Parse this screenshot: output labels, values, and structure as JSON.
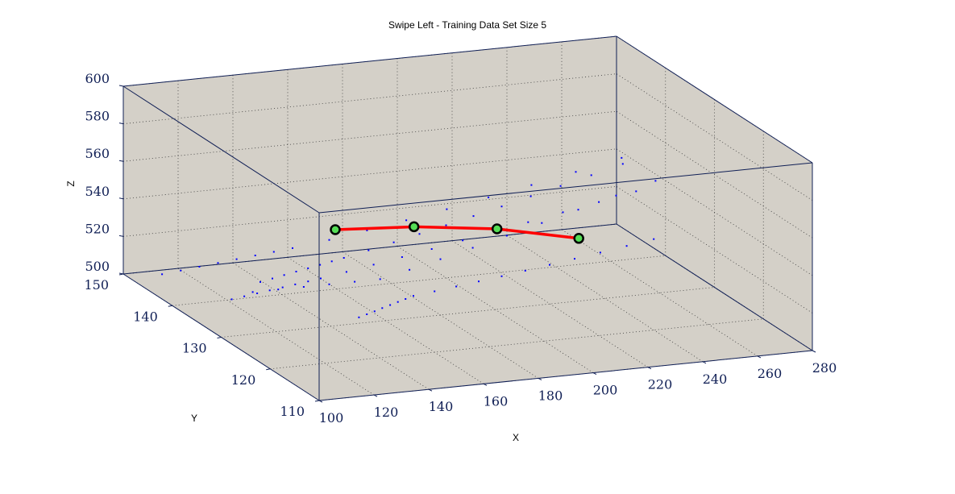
{
  "chart_data": {
    "type": "scatter",
    "title": "Swipe Left - Training Data Set Size 5",
    "xlabel": "X",
    "ylabel": "Y",
    "zlabel": "Z",
    "xlim": [
      100,
      280
    ],
    "ylim": [
      110,
      150
    ],
    "zlim": [
      500,
      600
    ],
    "xticks": [
      "100",
      "120",
      "140",
      "160",
      "180",
      "200",
      "220",
      "240",
      "260",
      "280"
    ],
    "yticks": [
      "110",
      "120",
      "130",
      "140",
      "150"
    ],
    "zticks": [
      "500",
      "520",
      "540",
      "560",
      "580",
      "600"
    ],
    "grid": true,
    "colors": {
      "pane": "#d4d0c8",
      "axis": "#101f55",
      "samples": "#0000ff",
      "path": "#ff0000",
      "node_fill": "#55dd55",
      "node_edge": "#000000"
    },
    "series": [
      {
        "style": "points",
        "points": [
          [
            145.5,
            123,
            536
          ],
          [
            136.2,
            123,
            536
          ],
          [
            126.9,
            123,
            536
          ],
          [
            117.6,
            123,
            536
          ],
          [
            108.3,
            123,
            536
          ],
          [
            99,
            123,
            536
          ],
          [
            156.2,
            123,
            539.4
          ],
          [
            167.5,
            123,
            543.4
          ],
          [
            179.3,
            123,
            547.7
          ],
          [
            191.7,
            123,
            552.3
          ],
          [
            204.5,
            123,
            557.2
          ],
          [
            217.8,
            123,
            562.3
          ],
          [
            231.6,
            123,
            567.8
          ],
          [
            246,
            123,
            573.5
          ],
          [
            164.8,
            127,
            517.5
          ],
          [
            161.9,
            127,
            516.3
          ],
          [
            159.1,
            127,
            515.1
          ],
          [
            156.3,
            127,
            513.9
          ],
          [
            153.4,
            127,
            512.7
          ],
          [
            150.6,
            127,
            511.4
          ],
          [
            147.8,
            127,
            510.2
          ],
          [
            144.9,
            127,
            509
          ],
          [
            172.5,
            127,
            518.8
          ],
          [
            180.4,
            127,
            520.2
          ],
          [
            188.6,
            127,
            521.7
          ],
          [
            197,
            127,
            523.2
          ],
          [
            205.6,
            127,
            524.9
          ],
          [
            214.5,
            127,
            526.7
          ],
          [
            223.6,
            127,
            528.6
          ],
          [
            233,
            127,
            530.5
          ],
          [
            242.6,
            127,
            532.6
          ],
          [
            252.5,
            127,
            534.8
          ],
          [
            138.1,
            131,
            524
          ],
          [
            133.5,
            131,
            523.1
          ],
          [
            128.8,
            131,
            522.2
          ],
          [
            124.2,
            131,
            521.3
          ],
          [
            119.5,
            131,
            520.4
          ],
          [
            114.9,
            131,
            519.5
          ],
          [
            110.2,
            131,
            518.6
          ],
          [
            105.6,
            131,
            517.7
          ],
          [
            147.5,
            131,
            526.1
          ],
          [
            157.4,
            131,
            528.5
          ],
          [
            167.8,
            131,
            531
          ],
          [
            178.6,
            131,
            533.7
          ],
          [
            189.9,
            131,
            536.6
          ],
          [
            201.6,
            131,
            539.6
          ],
          [
            213.8,
            131,
            542.8
          ],
          [
            226.5,
            131,
            546.2
          ],
          [
            239.6,
            131,
            549.7
          ],
          [
            253.2,
            131,
            553.4
          ],
          [
            153.7,
            135,
            525.9
          ],
          [
            149.3,
            135,
            524.7
          ],
          [
            145,
            135,
            523.5
          ],
          [
            140.6,
            135,
            522.3
          ],
          [
            136.3,
            135,
            521.2
          ],
          [
            131.9,
            135,
            520
          ],
          [
            127.6,
            135,
            518.8
          ],
          [
            123.2,
            135,
            517.6
          ],
          [
            162.7,
            135,
            528.6
          ],
          [
            171.9,
            135,
            531.5
          ],
          [
            181.3,
            135,
            534.6
          ],
          [
            191,
            135,
            537.8
          ],
          [
            201,
            135,
            541.2
          ],
          [
            211.3,
            135,
            544.8
          ],
          [
            221.9,
            135,
            548.6
          ],
          [
            232.8,
            135,
            552.5
          ],
          [
            244,
            135,
            556.6
          ],
          [
            255.5,
            135,
            560.9
          ],
          [
            142.1,
            139,
            526.1
          ],
          [
            135.3,
            139,
            525.1
          ],
          [
            128.5,
            139,
            524.2
          ],
          [
            121.7,
            139,
            523.2
          ],
          [
            114.9,
            139,
            522.2
          ],
          [
            108.1,
            139,
            521.2
          ],
          [
            101.3,
            139,
            520.2
          ],
          [
            94.5,
            139,
            519.2
          ],
          [
            155.5,
            139,
            528.5
          ],
          [
            169.3,
            139,
            531.5
          ],
          [
            183.6,
            139,
            534.8
          ],
          [
            198.4,
            139,
            538.5
          ],
          [
            213.6,
            139,
            542.5
          ],
          [
            229.3,
            139,
            546.8
          ],
          [
            245.5,
            139,
            551.4
          ],
          [
            262.2,
            139,
            556.4
          ]
        ]
      },
      {
        "style": "line-with-markers",
        "points": [
          [
            172,
            147,
            518
          ],
          [
            190,
            141,
            527
          ],
          [
            206,
            133,
            537
          ],
          [
            218,
            123,
            547
          ]
        ]
      }
    ]
  }
}
